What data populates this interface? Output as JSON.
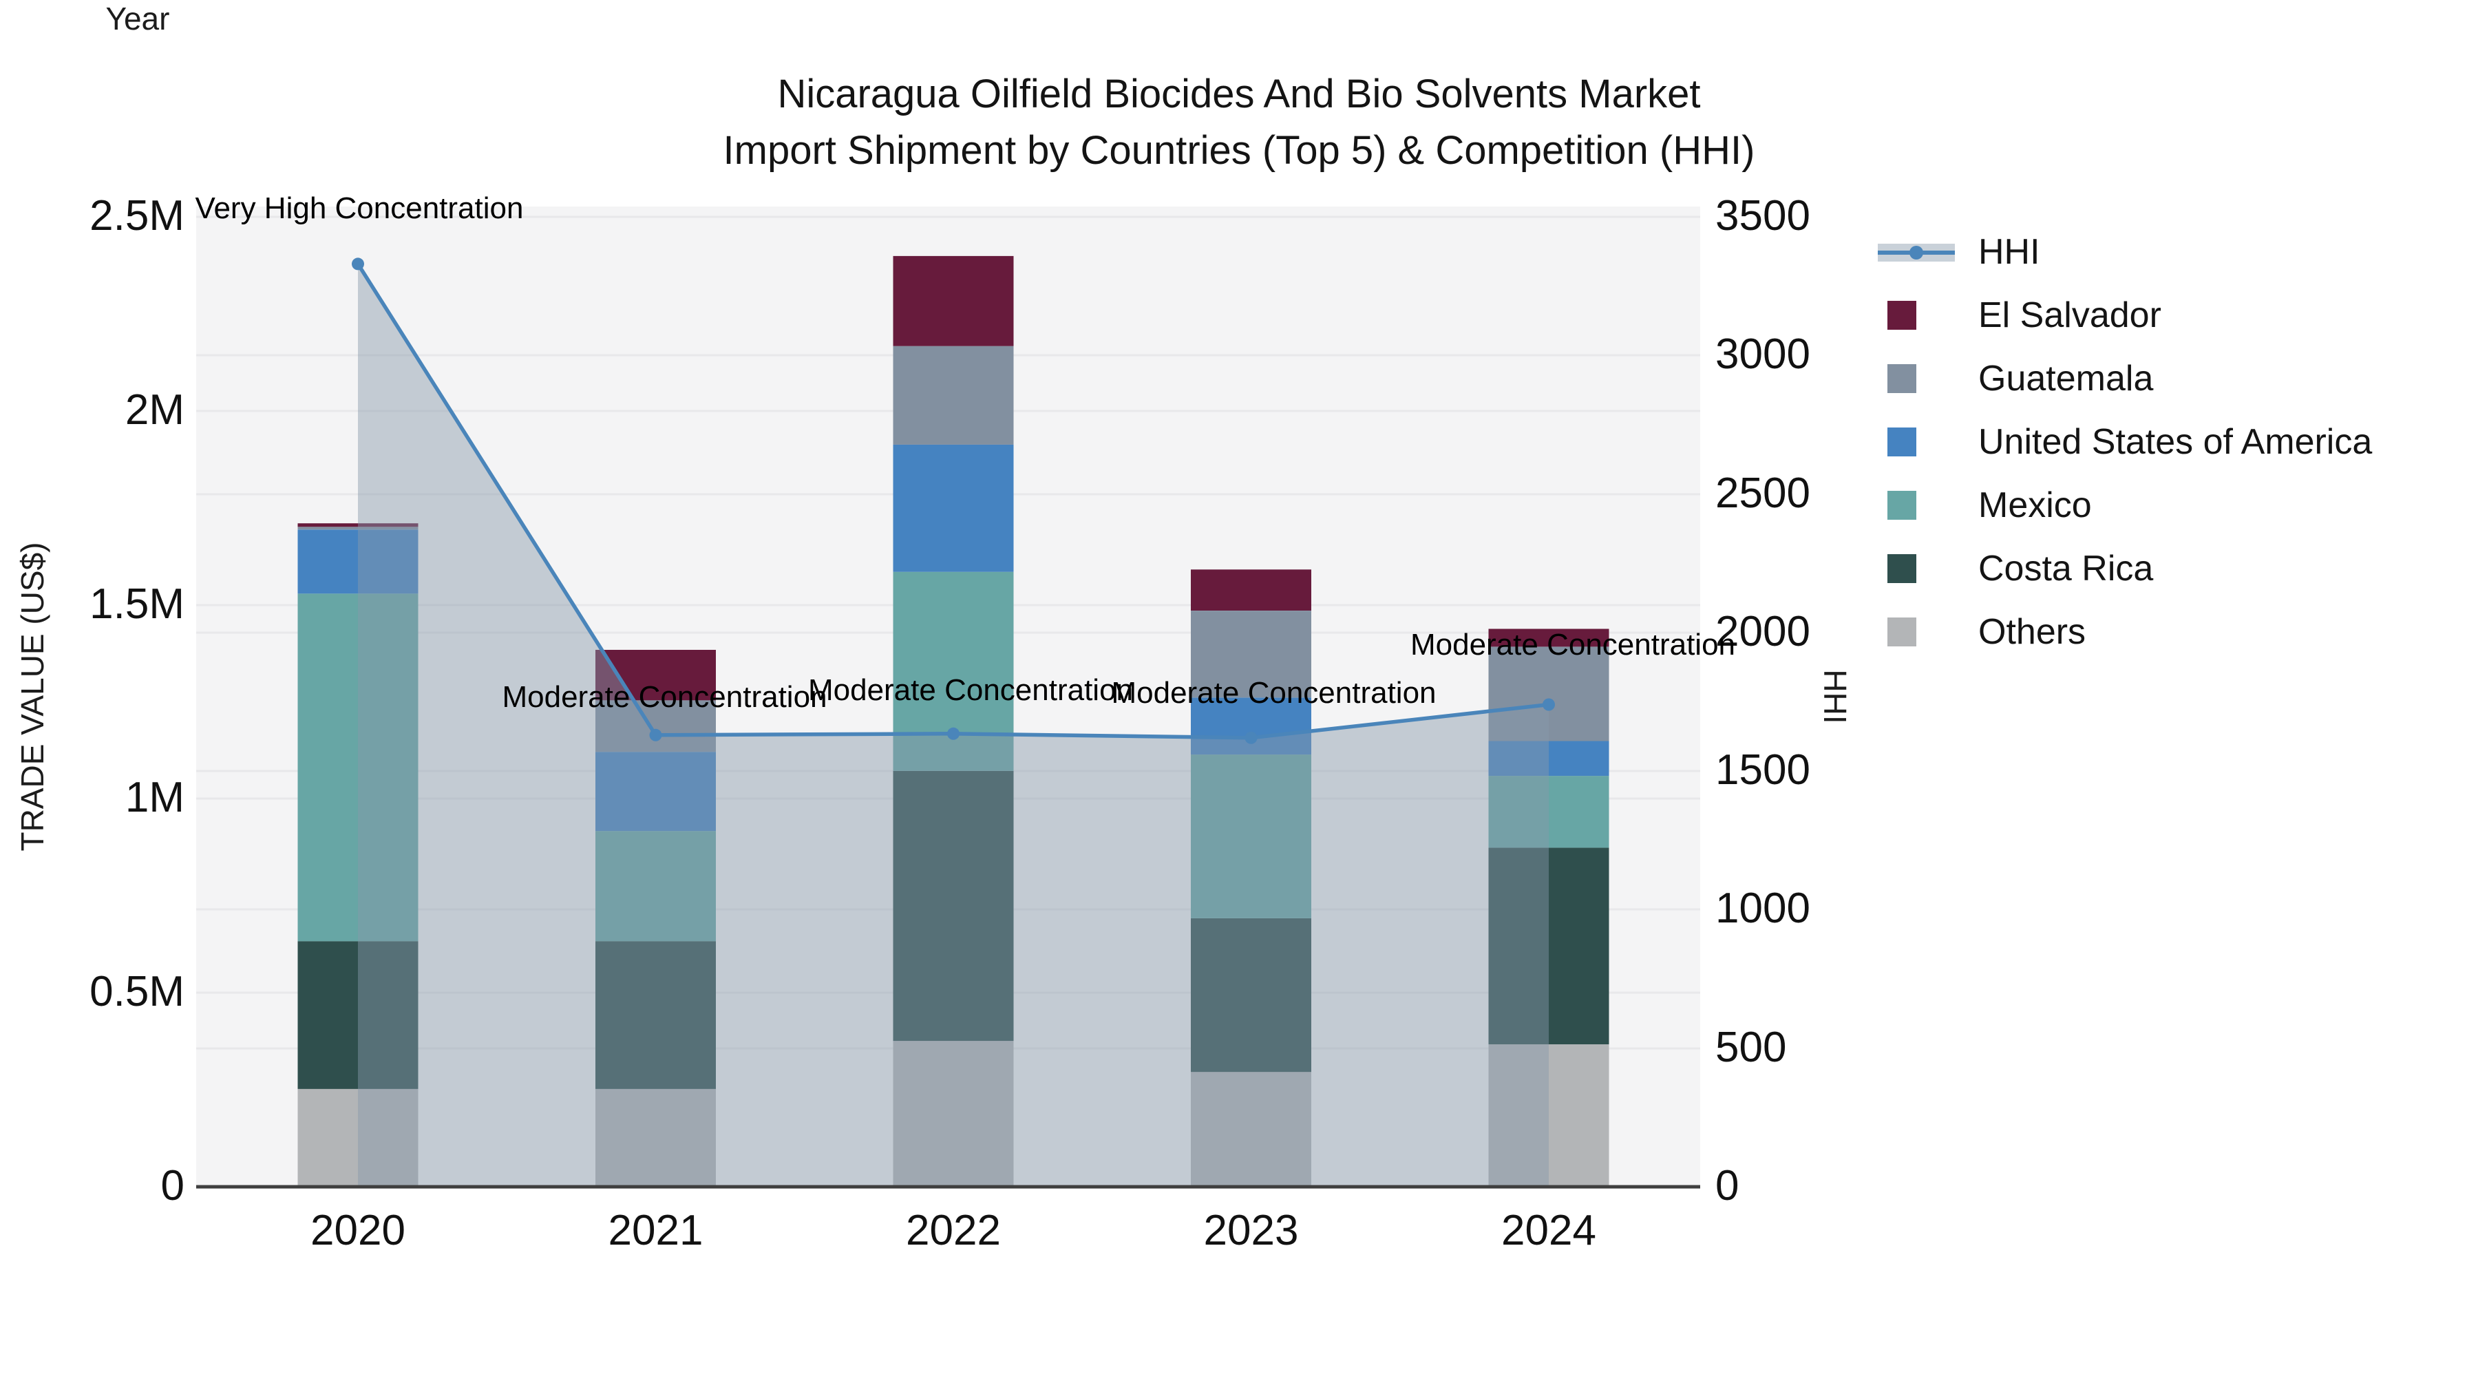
{
  "title": {
    "line1": "Nicaragua Oilfield Biocides And Bio Solvents Market",
    "line2": "Import Shipment by Countries (Top 5) & Competition (HHI)"
  },
  "axes": {
    "y_left": {
      "label": "TRADE VALUE (US$)",
      "ticks": [
        {
          "value": 0,
          "label": "0"
        },
        {
          "value": 500000,
          "label": "0.5M"
        },
        {
          "value": 1000000,
          "label": "1M"
        },
        {
          "value": 1500000,
          "label": "1.5M"
        },
        {
          "value": 2000000,
          "label": "2M"
        },
        {
          "value": 2500000,
          "label": "2.5M"
        }
      ],
      "max": 2500000
    },
    "y_right": {
      "label": "HHI",
      "ticks": [
        {
          "value": 0,
          "label": "0"
        },
        {
          "value": 500,
          "label": "500"
        },
        {
          "value": 1000,
          "label": "1000"
        },
        {
          "value": 1500,
          "label": "1500"
        },
        {
          "value": 2000,
          "label": "2000"
        },
        {
          "value": 2500,
          "label": "2500"
        },
        {
          "value": 3000,
          "label": "3000"
        },
        {
          "value": 3500,
          "label": "3500"
        }
      ],
      "max": 3500
    },
    "x": {
      "label": "Year",
      "categories": [
        "2020",
        "2021",
        "2022",
        "2023",
        "2024"
      ]
    }
  },
  "legend": {
    "items": [
      {
        "label": "HHI",
        "type": "line",
        "color_key": "hhi_line"
      },
      {
        "label": "El Salvador",
        "type": "square",
        "color_key": "el_salvador"
      },
      {
        "label": "Guatemala",
        "type": "square",
        "color_key": "guatemala"
      },
      {
        "label": "United States of America",
        "type": "square",
        "color_key": "usa"
      },
      {
        "label": "Mexico",
        "type": "square",
        "color_key": "mexico"
      },
      {
        "label": "Costa Rica",
        "type": "square",
        "color_key": "costa_rica"
      },
      {
        "label": "Others",
        "type": "square",
        "color_key": "others"
      }
    ]
  },
  "colors": {
    "el_salvador": "#671b3c",
    "guatemala": "#8290a0",
    "usa": "#4583c1",
    "mexico": "#67a6a5",
    "costa_rica": "#2f4f4d",
    "others": "#b3b5b7",
    "hhi_line": "#4a85ba",
    "hhi_fill": "rgba(136,153,170,0.45)",
    "plot_bg": "#f4f4f5",
    "gridline": "#e8e8ea",
    "axis_line": "#3f3f3f"
  },
  "annotations": [
    {
      "category": "2020",
      "text": "Very High Concentration"
    },
    {
      "category": "2021",
      "text": "Moderate Concentration"
    },
    {
      "category": "2022",
      "text": "Moderate Concentration"
    },
    {
      "category": "2023",
      "text": "Moderate Concentration"
    },
    {
      "category": "2024",
      "text": "Moderate Concentration"
    }
  ],
  "chart_data": {
    "type": "bar",
    "subtype": "stacked-bars-with-line-overlay",
    "title": "Nicaragua Oilfield Biocides And Bio Solvents Market Import Shipment by Countries (Top 5) & Competition (HHI)",
    "xlabel": "Year",
    "ylabel": "TRADE VALUE (US$)",
    "y2label": "HHI",
    "ylim": [
      0,
      2500000
    ],
    "y2lim": [
      0,
      3500
    ],
    "grid": true,
    "legend_position": "right",
    "categories": [
      "2020",
      "2021",
      "2022",
      "2023",
      "2024"
    ],
    "series": [
      {
        "name": "Others",
        "color_key": "others",
        "values": [
          252000,
          252000,
          376000,
          296000,
          367000
        ]
      },
      {
        "name": "Costa Rica",
        "color_key": "costa_rica",
        "values": [
          381000,
          381000,
          696000,
          396000,
          507000
        ]
      },
      {
        "name": "Mexico",
        "color_key": "mexico",
        "values": [
          896000,
          284000,
          513000,
          422000,
          185000
        ]
      },
      {
        "name": "United States of America",
        "color_key": "usa",
        "values": [
          165000,
          204000,
          328000,
          147000,
          90000
        ]
      },
      {
        "name": "Guatemala",
        "color_key": "guatemala",
        "values": [
          7000,
          133000,
          254000,
          224000,
          243000
        ]
      },
      {
        "name": "El Salvador",
        "color_key": "el_salvador",
        "values": [
          9000,
          130000,
          232000,
          106000,
          46000
        ]
      }
    ],
    "line_series": {
      "name": "HHI",
      "axis": "right",
      "values": [
        3330,
        1630,
        1635,
        1620,
        1740
      ],
      "area_fill": true
    }
  }
}
